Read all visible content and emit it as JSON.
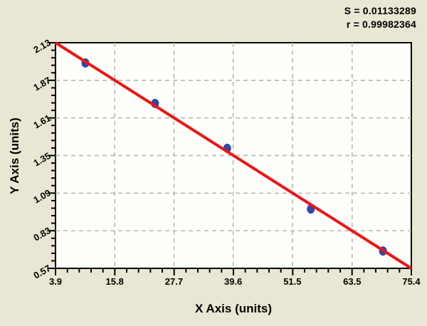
{
  "colors": {
    "background": "#e9e6d3",
    "plot_background": "#fefefb",
    "axis": "#000000",
    "grid": "#b2b2b2",
    "fit_line": "#ee1512",
    "data_point": "#2c49ab",
    "text": "#000000"
  },
  "chart_data": {
    "type": "scatter",
    "title": "",
    "xlabel": "X Axis (units)",
    "ylabel": "Y Axis (units)",
    "xlim": [
      3.9,
      75.4
    ],
    "ylim": [
      0.57,
      2.13
    ],
    "x_ticks": [
      3.9,
      15.8,
      27.7,
      39.6,
      51.5,
      63.5,
      75.4
    ],
    "y_ticks": [
      2.13,
      1.87,
      1.61,
      1.35,
      1.09,
      0.83,
      0.57
    ],
    "x_tick_labels": [
      "3.9",
      "15.8",
      "27.7",
      "39.6",
      "51.5",
      "63.5",
      "75.4"
    ],
    "y_tick_labels": [
      "2.13",
      "1.87",
      "1.61",
      "1.35",
      "1.09",
      "0.83",
      "0.57"
    ],
    "minor_divisions_per_major": 5,
    "grid": "major-dashed",
    "legend": "none",
    "series": [
      {
        "name": "calibration-points",
        "type": "scatter",
        "color": "#2c49ab",
        "x": [
          9.9,
          23.9,
          38.4,
          55.2,
          69.7
        ],
        "y": [
          1.99,
          1.71,
          1.4,
          0.98,
          0.69
        ]
      },
      {
        "name": "regression-line",
        "type": "line",
        "color": "#ee1512",
        "x": [
          3.9,
          75.4
        ],
        "y": [
          2.13,
          0.57
        ]
      }
    ],
    "annotations": [
      "S = 0.01133289",
      "r = 0.99982364"
    ]
  }
}
